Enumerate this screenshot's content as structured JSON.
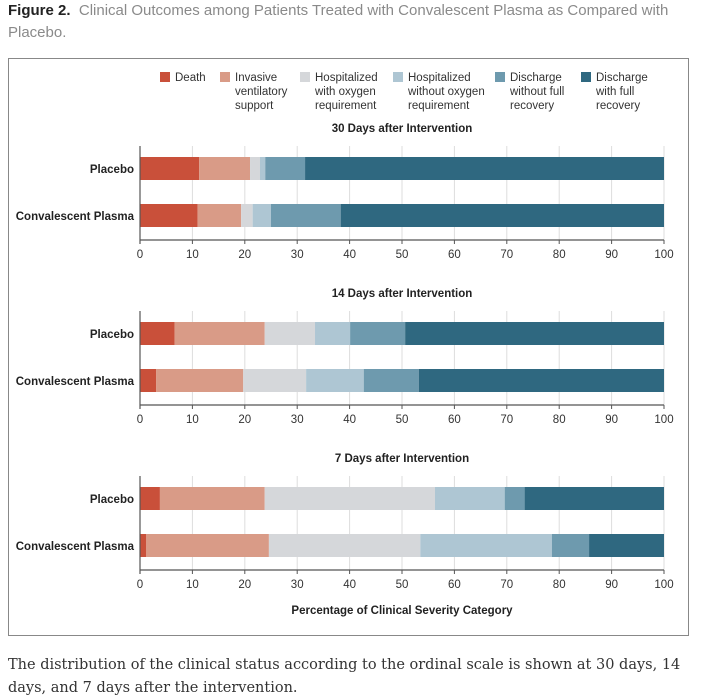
{
  "figure": {
    "label": "Figure 2.",
    "title": "Clinical Outcomes among Patients Treated with Convalescent Plasma as Compared with Placebo.",
    "caption": "The distribution of the clinical status according to the ordinal scale is shown at 30 days, 14 days, and 7 days after the intervention."
  },
  "chart_data": {
    "type": "bar",
    "orientation": "horizontal",
    "stacked": true,
    "xlabel": "Percentage of Clinical Severity Category",
    "xlim": [
      0,
      100
    ],
    "xticks": [
      0,
      10,
      20,
      30,
      40,
      50,
      60,
      70,
      80,
      90,
      100
    ],
    "grid": true,
    "legend_position": "top",
    "legend": [
      {
        "name": "Death",
        "lines": [
          "Death"
        ],
        "color": "#c9503a"
      },
      {
        "name": "Invasive ventilatory support",
        "lines": [
          "Invasive",
          "ventilatory",
          "support"
        ],
        "color": "#d99b87"
      },
      {
        "name": "Hospitalized with oxygen requirement",
        "lines": [
          "Hospitalized",
          "with oxygen",
          "requirement"
        ],
        "color": "#d5d7da"
      },
      {
        "name": "Hospitalized without oxygen requirement",
        "lines": [
          "Hospitalized",
          "without oxygen",
          "requirement"
        ],
        "color": "#aec6d3"
      },
      {
        "name": "Discharge without full recovery",
        "lines": [
          "Discharge",
          "without full",
          "recovery"
        ],
        "color": "#6e9aae"
      },
      {
        "name": "Discharge with full recovery",
        "lines": [
          "Discharge",
          "with full",
          "recovery"
        ],
        "color": "#2f6880"
      }
    ],
    "panels": [
      {
        "title": "30 Days after Intervention",
        "categories": [
          "Placebo",
          "Convalescent Plasma"
        ],
        "values": [
          [
            11.3,
            9.7,
            1.9,
            1.0,
            7.6,
            68.5
          ],
          [
            11.0,
            8.3,
            2.2,
            3.5,
            13.3,
            61.7
          ]
        ]
      },
      {
        "title": "14 Days after Intervention",
        "categories": [
          "Placebo",
          "Convalescent Plasma"
        ],
        "values": [
          [
            6.6,
            17.2,
            9.6,
            6.7,
            10.5,
            49.4
          ],
          [
            3.1,
            16.6,
            12.0,
            11.0,
            10.5,
            46.8
          ]
        ]
      },
      {
        "title": "7 Days after Intervention",
        "categories": [
          "Placebo",
          "Convalescent Plasma"
        ],
        "values": [
          [
            3.8,
            20.0,
            32.5,
            13.3,
            3.8,
            26.6
          ],
          [
            1.2,
            23.4,
            28.9,
            25.1,
            7.1,
            14.3
          ]
        ]
      }
    ]
  }
}
